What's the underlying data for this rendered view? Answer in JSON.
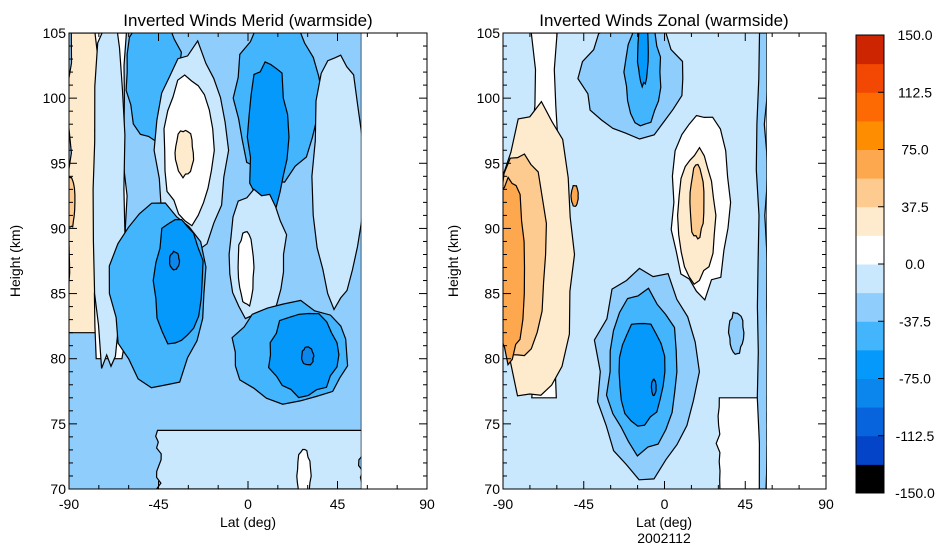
{
  "chart_data": [
    {
      "type": "heatmap",
      "subtype": "filled-contour",
      "title": "Inverted Winds Merid (warmside)",
      "xlabel": "Lat (deg)",
      "ylabel": "Height (km)",
      "xlim": [
        -90,
        90
      ],
      "ylim": [
        70,
        105
      ],
      "xticks": [
        "-90",
        "-45",
        "0",
        "45",
        "90"
      ],
      "yticks": [
        "70",
        "75",
        "80",
        "85",
        "90",
        "95",
        "100",
        "105"
      ],
      "data_extent_lat": [
        -90,
        57
      ],
      "background_level": -37.5,
      "features": [
        {
          "kind": "band",
          "level": 18.75,
          "lat": [
            -90,
            -72
          ],
          "h": [
            82,
            105
          ]
        },
        {
          "kind": "band",
          "level": 0,
          "lat": [
            -76,
            -62
          ],
          "h": [
            80,
            105
          ]
        },
        {
          "kind": "blob",
          "level": 37.5,
          "lat": -89,
          "h": 92,
          "rlat": 2,
          "rh": 2
        },
        {
          "kind": "blob",
          "level": -18.75,
          "lat": -70,
          "h": 93,
          "rlat": 8,
          "rh": 14
        },
        {
          "kind": "blob",
          "level": -56.25,
          "lat": -48,
          "h": 102,
          "rlat": 14,
          "rh": 5
        },
        {
          "kind": "blob",
          "level": -18.75,
          "lat": -28,
          "h": 96,
          "rlat": 18,
          "rh": 8
        },
        {
          "kind": "blob",
          "level": 0,
          "lat": -30,
          "h": 96,
          "rlat": 12,
          "rh": 5.5
        },
        {
          "kind": "blob",
          "level": 18.75,
          "lat": -32,
          "h": 95.8,
          "rlat": 4.5,
          "rh": 1.8
        },
        {
          "kind": "blob",
          "level": -56.25,
          "lat": 15,
          "h": 100,
          "rlat": 22,
          "rh": 6
        },
        {
          "kind": "blob",
          "level": -75,
          "lat": 10,
          "h": 97,
          "rlat": 10,
          "rh": 6
        },
        {
          "kind": "blob",
          "level": -18.75,
          "lat": 45,
          "h": 94,
          "rlat": 12,
          "rh": 10
        },
        {
          "kind": "blob",
          "level": -56.25,
          "lat": -45,
          "h": 85,
          "rlat": 24,
          "rh": 7
        },
        {
          "kind": "blob",
          "level": -75,
          "lat": -35,
          "h": 86,
          "rlat": 12,
          "rh": 5
        },
        {
          "kind": "blob",
          "level": -93.75,
          "lat": -37,
          "h": 87.5,
          "rlat": 2.5,
          "rh": 0.7
        },
        {
          "kind": "blob",
          "level": -18.75,
          "lat": 5,
          "h": 88,
          "rlat": 14,
          "rh": 5
        },
        {
          "kind": "blob",
          "level": 0,
          "lat": -1,
          "h": 87,
          "rlat": 4,
          "rh": 3
        },
        {
          "kind": "blob",
          "level": -56.25,
          "lat": 22,
          "h": 80.5,
          "rlat": 30,
          "rh": 3.8
        },
        {
          "kind": "blob",
          "level": -75,
          "lat": 28,
          "h": 80.3,
          "rlat": 17,
          "rh": 3.2
        },
        {
          "kind": "blob",
          "level": -93.75,
          "lat": 30,
          "h": 80.2,
          "rlat": 3,
          "rh": 0.7
        },
        {
          "kind": "band",
          "level": -18.75,
          "lat": [
            -45,
            57
          ],
          "h": [
            70,
            74.5
          ]
        },
        {
          "kind": "blob",
          "level": 0,
          "lat": 28,
          "h": 71,
          "rlat": 3.5,
          "rh": 2
        }
      ]
    },
    {
      "type": "heatmap",
      "subtype": "filled-contour",
      "title": "Inverted Winds Zonal (warmside)",
      "xlabel": "Lat (deg)",
      "xlabel2": "2002112",
      "ylabel": "Height (km)",
      "xlim": [
        -90,
        90
      ],
      "ylim": [
        70,
        105
      ],
      "xticks": [
        "-90",
        "-45",
        "0",
        "45",
        "90"
      ],
      "yticks": [
        "70",
        "75",
        "80",
        "85",
        "90",
        "95",
        "100",
        "105"
      ],
      "data_extent_lat": [
        -90,
        57
      ],
      "background_level": -18.75,
      "features": [
        {
          "kind": "band",
          "level": 0,
          "lat": [
            -73,
            -60
          ],
          "h": [
            77,
            105
          ]
        },
        {
          "kind": "blob",
          "level": 18.75,
          "lat": -72,
          "h": 88,
          "rlat": 22,
          "rh": 11
        },
        {
          "kind": "blob",
          "level": 37.5,
          "lat": -80,
          "h": 88,
          "rlat": 14,
          "rh": 8
        },
        {
          "kind": "blob",
          "level": 56.25,
          "lat": -86,
          "h": 87,
          "rlat": 8,
          "rh": 7
        },
        {
          "kind": "blob",
          "level": 56.25,
          "lat": -50,
          "h": 92.5,
          "rlat": 2,
          "rh": 0.8
        },
        {
          "kind": "blob",
          "level": -37.5,
          "lat": -18,
          "h": 101.5,
          "rlat": 28,
          "rh": 4.5
        },
        {
          "kind": "blob",
          "level": -56.25,
          "lat": -12,
          "h": 102,
          "rlat": 10,
          "rh": 4
        },
        {
          "kind": "blob",
          "level": -75,
          "lat": -12,
          "h": 103.5,
          "rlat": 3,
          "rh": 2.5
        },
        {
          "kind": "blob",
          "level": 0,
          "lat": 20,
          "h": 92,
          "rlat": 16,
          "rh": 7
        },
        {
          "kind": "blob",
          "level": 18.75,
          "lat": 18,
          "h": 91,
          "rlat": 10,
          "rh": 5
        },
        {
          "kind": "blob",
          "level": 37.5,
          "lat": 18,
          "h": 92,
          "rlat": 4,
          "rh": 2.8
        },
        {
          "kind": "blob",
          "level": -37.5,
          "lat": -10,
          "h": 79,
          "rlat": 28,
          "rh": 8
        },
        {
          "kind": "blob",
          "level": -56.25,
          "lat": -12,
          "h": 79,
          "rlat": 20,
          "rh": 6
        },
        {
          "kind": "blob",
          "level": -75,
          "lat": -13,
          "h": 79,
          "rlat": 13,
          "rh": 4
        },
        {
          "kind": "blob",
          "level": -93.75,
          "lat": -6,
          "h": 77.8,
          "rlat": 1.3,
          "rh": 0.6
        },
        {
          "kind": "blob",
          "level": -37.5,
          "lat": 40,
          "h": 82,
          "rlat": 4,
          "rh": 1.6
        },
        {
          "kind": "band",
          "level": 0,
          "lat": [
            30,
            57
          ],
          "h": [
            70,
            77
          ]
        },
        {
          "kind": "band",
          "level": -37.5,
          "lat": [
            52,
            57
          ],
          "h": [
            70,
            105
          ]
        }
      ]
    }
  ],
  "colorbar": {
    "tick_labels": [
      "150.0",
      "112.5",
      "75.0",
      "37.5",
      "0.0",
      "-37.5",
      "-75.0",
      "-112.5",
      "-150.0"
    ],
    "min": -150,
    "max": 150,
    "levels": [
      -150,
      -131.25,
      -112.5,
      -93.75,
      -75,
      -56.25,
      -37.5,
      -18.75,
      0,
      18.75,
      37.5,
      56.25,
      75,
      93.75,
      112.5,
      131.25,
      150
    ],
    "colors": [
      "#000000",
      "#0444c8",
      "#0764dc",
      "#0a86ec",
      "#0499fb",
      "#42b5fd",
      "#8fcdfc",
      "#c9e8fd",
      "#ffffff",
      "#feebcd",
      "#fdcb8f",
      "#fda84e",
      "#fe8d01",
      "#fd6a03",
      "#f24803",
      "#cd2401"
    ]
  }
}
